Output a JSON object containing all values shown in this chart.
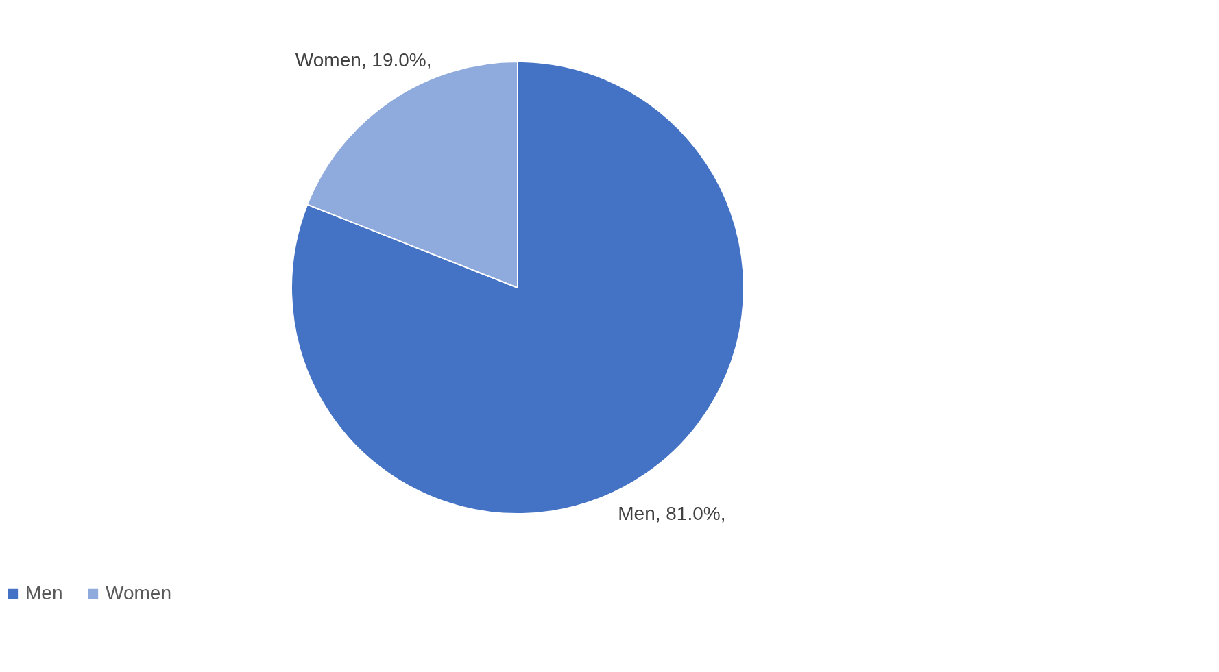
{
  "chart_data": {
    "type": "pie",
    "categories": [
      "Men",
      "Women"
    ],
    "values": [
      81.0,
      19.0
    ],
    "colors": [
      "#4472c4",
      "#8faadc"
    ],
    "value_labels": [
      "Men, 81.0%,",
      "Women, 19.0%,"
    ],
    "legend": "bottom"
  }
}
